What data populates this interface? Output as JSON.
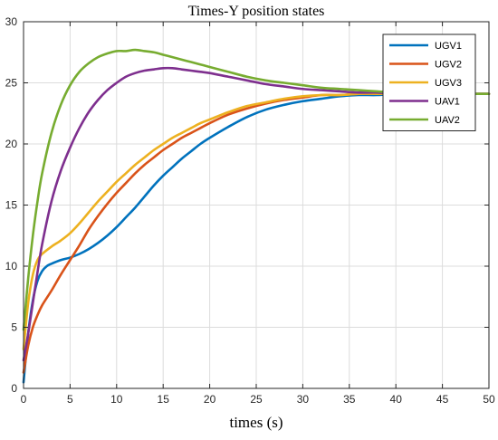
{
  "chart_data": {
    "type": "line",
    "title": "Times-Y position states",
    "xlabel": "times (s)",
    "ylabel": "",
    "xlim": [
      0,
      50
    ],
    "ylim": [
      0,
      30
    ],
    "xticks": [
      "0",
      "5",
      "10",
      "15",
      "20",
      "25",
      "30",
      "35",
      "40",
      "45",
      "50"
    ],
    "yticks": [
      "0",
      "5",
      "10",
      "15",
      "20",
      "25",
      "30"
    ],
    "grid": true,
    "legend_position": "top-right",
    "series": [
      {
        "name": "UGV1",
        "color": "#0072BD",
        "x": [
          0,
          0.5,
          1,
          1.5,
          2,
          2.5,
          3,
          4,
          5,
          6,
          7,
          8,
          9,
          10,
          11,
          12,
          13,
          14,
          15,
          16,
          17,
          18,
          19,
          20,
          22,
          24,
          26,
          28,
          30,
          32,
          34,
          36,
          38,
          40,
          42,
          44,
          46,
          48,
          50
        ],
        "y": [
          0.5,
          4.5,
          7.2,
          8.8,
          9.6,
          10.0,
          10.2,
          10.5,
          10.7,
          11.0,
          11.4,
          11.9,
          12.5,
          13.2,
          14.0,
          14.8,
          15.7,
          16.6,
          17.4,
          18.1,
          18.8,
          19.4,
          20.0,
          20.5,
          21.4,
          22.2,
          22.8,
          23.2,
          23.5,
          23.7,
          23.9,
          24.0,
          24.0,
          24.1,
          24.1,
          24.1,
          24.1,
          24.1,
          24.1
        ]
      },
      {
        "name": "UGV2",
        "color": "#D95319",
        "x": [
          0,
          0.5,
          1,
          1.5,
          2,
          3,
          4,
          5,
          6,
          7,
          8,
          9,
          10,
          11,
          12,
          13,
          14,
          15,
          16,
          17,
          18,
          19,
          20,
          22,
          24,
          26,
          28,
          30,
          32,
          34,
          36,
          38,
          40,
          42,
          44,
          46,
          48,
          50
        ],
        "y": [
          1.3,
          3.5,
          5.0,
          6.0,
          6.8,
          8.0,
          9.3,
          10.5,
          11.7,
          13.0,
          14.1,
          15.1,
          16.0,
          16.8,
          17.6,
          18.3,
          18.9,
          19.5,
          20.0,
          20.5,
          20.9,
          21.3,
          21.7,
          22.4,
          22.9,
          23.3,
          23.6,
          23.8,
          24.0,
          24.0,
          24.1,
          24.1,
          24.1,
          24.1,
          24.1,
          24.1,
          24.1,
          24.1
        ]
      },
      {
        "name": "UGV3",
        "color": "#EDB120",
        "x": [
          0,
          0.5,
          1,
          1.5,
          2,
          3,
          4,
          5,
          6,
          7,
          8,
          9,
          10,
          11,
          12,
          13,
          14,
          15,
          16,
          17,
          18,
          19,
          20,
          22,
          24,
          26,
          28,
          30,
          32,
          34,
          36,
          38,
          40,
          42,
          44,
          46,
          48,
          50
        ],
        "y": [
          3.2,
          7.0,
          9.3,
          10.5,
          11.0,
          11.6,
          12.1,
          12.7,
          13.5,
          14.4,
          15.3,
          16.1,
          16.9,
          17.6,
          18.3,
          18.9,
          19.5,
          20.0,
          20.5,
          20.9,
          21.3,
          21.7,
          22.0,
          22.6,
          23.1,
          23.4,
          23.7,
          23.9,
          24.0,
          24.0,
          24.1,
          24.1,
          24.1,
          24.1,
          24.1,
          24.1,
          24.1,
          24.1
        ]
      },
      {
        "name": "UAV1",
        "color": "#7E2F8E",
        "x": [
          0,
          0.5,
          1,
          1.5,
          2,
          3,
          4,
          5,
          6,
          7,
          8,
          9,
          10,
          11,
          12,
          13,
          14,
          15,
          16,
          17,
          18,
          19,
          20,
          22,
          24,
          26,
          28,
          30,
          32,
          34,
          36,
          38,
          40,
          42,
          44,
          46,
          48,
          50
        ],
        "y": [
          2.3,
          4.5,
          7.0,
          9.5,
          11.8,
          15.3,
          17.8,
          19.7,
          21.3,
          22.6,
          23.6,
          24.4,
          25.0,
          25.5,
          25.8,
          26.0,
          26.1,
          26.2,
          26.2,
          26.1,
          26.0,
          25.9,
          25.8,
          25.5,
          25.2,
          24.9,
          24.7,
          24.5,
          24.4,
          24.3,
          24.2,
          24.2,
          24.1,
          24.1,
          24.1,
          24.1,
          24.1,
          24.1
        ]
      },
      {
        "name": "UAV2",
        "color": "#77AC30",
        "x": [
          0,
          0.5,
          1,
          1.5,
          2,
          3,
          4,
          5,
          6,
          7,
          8,
          9,
          10,
          11,
          12,
          13,
          14,
          15,
          16,
          17,
          18,
          19,
          20,
          22,
          24,
          26,
          28,
          30,
          32,
          34,
          36,
          38,
          40,
          42,
          44,
          46,
          48,
          50
        ],
        "y": [
          4.8,
          9.0,
          12.5,
          15.3,
          17.6,
          20.9,
          23.2,
          24.8,
          25.9,
          26.6,
          27.1,
          27.4,
          27.6,
          27.6,
          27.7,
          27.6,
          27.5,
          27.3,
          27.1,
          26.9,
          26.7,
          26.5,
          26.3,
          25.9,
          25.5,
          25.2,
          25.0,
          24.8,
          24.6,
          24.5,
          24.4,
          24.3,
          24.2,
          24.2,
          24.1,
          24.1,
          24.1,
          24.1
        ]
      }
    ]
  }
}
